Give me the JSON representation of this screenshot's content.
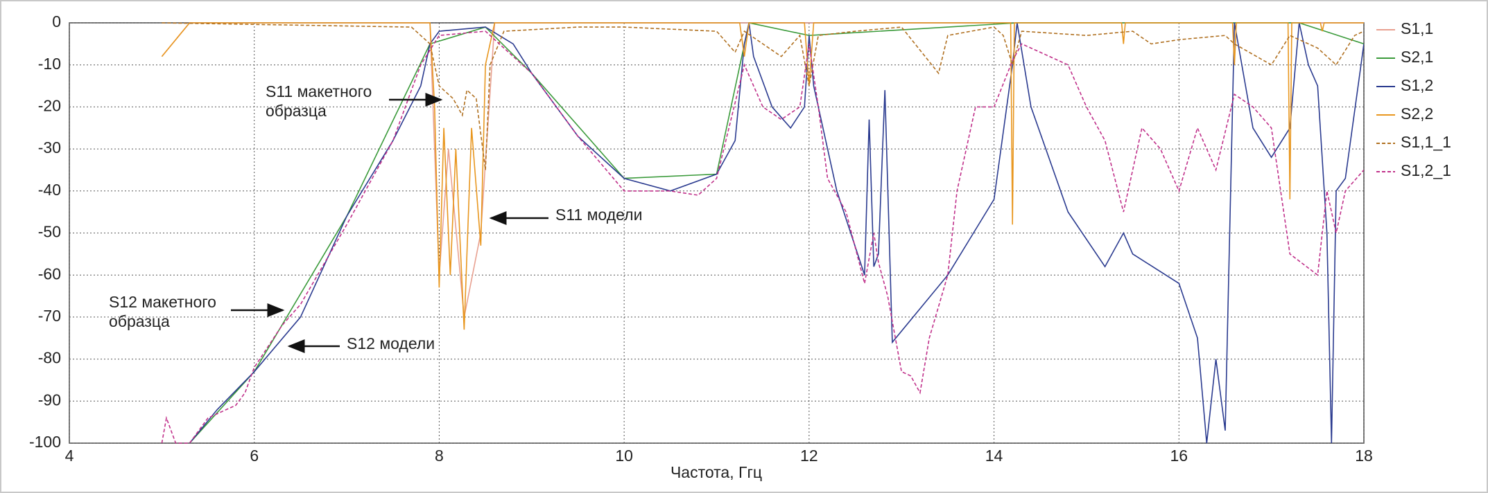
{
  "chart_data": {
    "type": "line",
    "xlabel": "Частота, Ггц",
    "xlim": [
      4,
      18
    ],
    "xticks": [
      4,
      6,
      8,
      10,
      12,
      14,
      16,
      18
    ],
    "ylim": [
      -100,
      0
    ],
    "yticks": [
      0,
      -10,
      -20,
      -30,
      -40,
      -50,
      -60,
      -70,
      -80,
      -90,
      -100
    ],
    "grid": true,
    "legend": "right",
    "series": [
      {
        "name": "S1,1",
        "color": "#e8a090",
        "dash": false,
        "x": [
          5,
          5.3,
          7.9,
          8.0,
          8.1,
          8.27,
          8.45,
          8.6,
          18
        ],
        "values": [
          -8,
          0,
          0,
          -60,
          -30,
          -70,
          -50,
          0,
          0
        ]
      },
      {
        "name": "S2,1",
        "color": "#3a9a3a",
        "dash": false,
        "x": [
          5.3,
          6,
          7,
          7.9,
          8.5,
          9,
          10,
          11,
          11.35,
          12,
          14.25,
          16.6,
          17.3,
          18
        ],
        "values": [
          -100,
          -83,
          -46,
          -5,
          -1,
          -12,
          -37,
          -36,
          0,
          -3,
          0,
          0,
          0,
          -5
        ]
      },
      {
        "name": "S1,2",
        "color": "#2a3a8f",
        "dash": false,
        "x": [
          5.3,
          5.6,
          6,
          6.5,
          7,
          7.5,
          7.8,
          7.9,
          8.0,
          8.5,
          8.8,
          9.0,
          9.5,
          10,
          10.5,
          11,
          11.2,
          11.3,
          11.35,
          11.4,
          11.6,
          11.8,
          11.95,
          12,
          12.05,
          12.3,
          12.6,
          12.65,
          12.7,
          12.75,
          12.82,
          12.9,
          13.5,
          14,
          14.2,
          14.25,
          14.4,
          14.8,
          15.2,
          15.4,
          15.5,
          16,
          16.2,
          16.3,
          16.4,
          16.5,
          16.6,
          16.8,
          17,
          17.2,
          17.3,
          17.4,
          17.5,
          17.6,
          17.65,
          17.7,
          17.8,
          18
        ],
        "values": [
          -100,
          -92,
          -83,
          -70,
          -46,
          -28,
          -15,
          -5,
          -2,
          -1,
          -5,
          -12,
          -27,
          -37,
          -40,
          -36,
          -28,
          -5,
          0,
          -8,
          -20,
          -25,
          -20,
          -3,
          -15,
          -40,
          -60,
          -23,
          -58,
          -55,
          -16,
          -76,
          -60,
          -42,
          -10,
          0,
          -20,
          -45,
          -58,
          -50,
          -55,
          -62,
          -75,
          -100,
          -80,
          -97,
          0,
          -25,
          -32,
          -25,
          0,
          -10,
          -15,
          -50,
          -100,
          -40,
          -37,
          -5
        ]
      },
      {
        "name": "S2,2",
        "color": "#e8961e",
        "dash": false,
        "x": [
          5,
          5.3,
          7.9,
          7.95,
          8.0,
          8.05,
          8.12,
          8.18,
          8.27,
          8.35,
          8.45,
          8.5,
          8.6,
          11.25,
          11.3,
          11.35,
          11.95,
          12.0,
          12.05,
          14.18,
          14.2,
          14.22,
          15.38,
          15.4,
          15.42,
          16.58,
          16.6,
          16.62,
          17.18,
          17.2,
          17.22,
          17.53,
          17.55,
          17.57,
          18
        ],
        "values": [
          -8,
          0,
          0,
          -20,
          -63,
          -25,
          -60,
          -30,
          -73,
          -25,
          -53,
          -10,
          0,
          0,
          -8,
          0,
          0,
          -15,
          0,
          0,
          -48,
          0,
          0,
          -5,
          0,
          0,
          -10,
          0,
          0,
          -42,
          0,
          0,
          -2,
          0,
          0
        ]
      },
      {
        "name": "S1,1_1",
        "color": "#b07020",
        "dash": true,
        "x": [
          5,
          7.7,
          7.9,
          8.0,
          8.15,
          8.25,
          8.3,
          8.4,
          8.5,
          8.55,
          8.7,
          9.5,
          10,
          11,
          11.2,
          11.3,
          11.5,
          11.7,
          11.9,
          12.0,
          12.1,
          12.5,
          13,
          13.4,
          13.5,
          14,
          14.1,
          14.2,
          14.3,
          15,
          15.5,
          15.7,
          16,
          16.5,
          16.6,
          17,
          17.2,
          17.5,
          17.7,
          17.9,
          18
        ],
        "values": [
          0,
          -1,
          -5,
          -15,
          -18,
          -22,
          -16,
          -18,
          -35,
          -10,
          -2,
          -1,
          -1,
          -2,
          -7,
          -2,
          -5,
          -8,
          -3,
          -15,
          -3,
          -2,
          -1,
          -12,
          -3,
          -1,
          -3,
          -10,
          -2,
          -3,
          -2,
          -5,
          -4,
          -3,
          -5,
          -10,
          -3,
          -6,
          -10,
          -3,
          -2
        ]
      },
      {
        "name": "S1,2_1",
        "color": "#c0308a",
        "dash": true,
        "x": [
          5,
          5.05,
          5.15,
          5.3,
          5.5,
          5.7,
          5.8,
          5.9,
          6,
          6.3,
          6.5,
          7,
          7.5,
          7.8,
          8.0,
          8.5,
          9,
          9.5,
          10,
          10.5,
          10.8,
          11,
          11.3,
          11.5,
          11.7,
          11.9,
          12,
          12.1,
          12.2,
          12.4,
          12.6,
          12.7,
          12.75,
          12.85,
          13.0,
          13.1,
          13.2,
          13.3,
          13.5,
          13.6,
          13.8,
          14.0,
          14.2,
          14.3,
          14.5,
          14.8,
          15,
          15.2,
          15.4,
          15.6,
          15.8,
          16,
          16.2,
          16.4,
          16.6,
          16.8,
          17,
          17.2,
          17.5,
          17.6,
          17.7,
          17.8,
          18
        ],
        "values": [
          -100,
          -94,
          -100,
          -100,
          -94,
          -92,
          -91,
          -88,
          -82,
          -72,
          -67,
          -48,
          -28,
          -10,
          -3,
          -2,
          -12,
          -27,
          -40,
          -40,
          -41,
          -37,
          -10,
          -20,
          -23,
          -20,
          -5,
          -20,
          -37,
          -45,
          -62,
          -50,
          -57,
          -65,
          -83,
          -84,
          -88,
          -75,
          -60,
          -40,
          -20,
          -20,
          -9,
          -5,
          -7,
          -10,
          -20,
          -28,
          -45,
          -25,
          -30,
          -40,
          -25,
          -35,
          -17,
          -20,
          -25,
          -55,
          -60,
          -40,
          -50,
          -40,
          -35
        ]
      }
    ],
    "annotations": [
      {
        "text": [
          "S11 макетного",
          "образца"
        ],
        "color": "#9a6a10"
      },
      {
        "text": [
          "S11 модели"
        ],
        "color": "#e8961e"
      },
      {
        "text": [
          "S12 макетного",
          "образца"
        ],
        "color": "#c8388a"
      },
      {
        "text": [
          "S12 модели"
        ],
        "color": "#2a3a8f"
      }
    ]
  }
}
